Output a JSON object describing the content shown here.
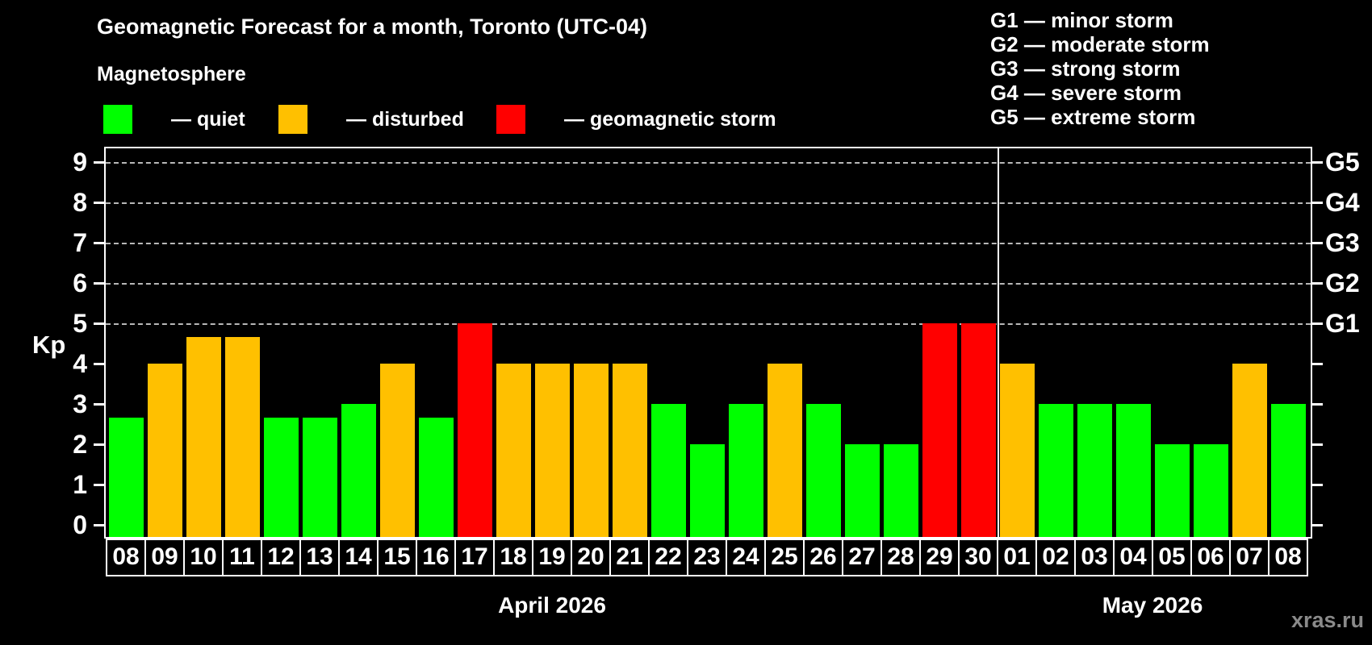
{
  "title": "Geomagnetic Forecast for a month, Toronto (UTC-04)",
  "subtitle": "Magnetosphere",
  "legend": {
    "items": [
      {
        "name": "quiet",
        "label": "— quiet",
        "color": "#00ff00"
      },
      {
        "name": "disturbed",
        "label": "— disturbed",
        "color": "#ffc000"
      },
      {
        "name": "storm",
        "label": "— geomagnetic storm",
        "color": "#ff0000"
      }
    ]
  },
  "g_legend": [
    "G1 — minor storm",
    "G2 — moderate storm",
    "G3 — strong storm",
    "G4 — severe storm",
    "G5 — extreme storm"
  ],
  "axes": {
    "kp_label": "Kp",
    "y_ticks": [
      0,
      1,
      2,
      3,
      4,
      5,
      6,
      7,
      8,
      9
    ],
    "gridline_kp": [
      5,
      6,
      7,
      8,
      9
    ],
    "g_axis_labels": [
      "G1",
      "G2",
      "G3",
      "G4",
      "G5"
    ],
    "g_axis_start_kp": 5
  },
  "months": [
    {
      "key": "april",
      "label": "April 2026"
    },
    {
      "key": "may",
      "label": "May 2026"
    }
  ],
  "watermark": "xras.ru",
  "chart_data": {
    "type": "bar",
    "title": "Geomagnetic Forecast for a month, Toronto (UTC-04)",
    "xlabel": "",
    "ylabel": "Kp",
    "ylim": [
      0,
      9
    ],
    "grid": "dashed horizontal at Kp 5-9 (G1-G5)",
    "legend_position": "top-left",
    "status_colors": {
      "quiet": "#00ff00",
      "disturbed": "#ffc000",
      "storm": "#ff0000"
    },
    "bars": [
      {
        "month": "april",
        "day": "08",
        "kp": 2.67,
        "status": "quiet"
      },
      {
        "month": "april",
        "day": "09",
        "kp": 4,
        "status": "disturbed"
      },
      {
        "month": "april",
        "day": "10",
        "kp": 4.67,
        "status": "disturbed"
      },
      {
        "month": "april",
        "day": "11",
        "kp": 4.67,
        "status": "disturbed"
      },
      {
        "month": "april",
        "day": "12",
        "kp": 2.67,
        "status": "quiet"
      },
      {
        "month": "april",
        "day": "13",
        "kp": 2.67,
        "status": "quiet"
      },
      {
        "month": "april",
        "day": "14",
        "kp": 3,
        "status": "quiet"
      },
      {
        "month": "april",
        "day": "15",
        "kp": 4,
        "status": "disturbed"
      },
      {
        "month": "april",
        "day": "16",
        "kp": 2.67,
        "status": "quiet"
      },
      {
        "month": "april",
        "day": "17",
        "kp": 5,
        "status": "storm"
      },
      {
        "month": "april",
        "day": "18",
        "kp": 4,
        "status": "disturbed"
      },
      {
        "month": "april",
        "day": "19",
        "kp": 4,
        "status": "disturbed"
      },
      {
        "month": "april",
        "day": "20",
        "kp": 4,
        "status": "disturbed"
      },
      {
        "month": "april",
        "day": "21",
        "kp": 4,
        "status": "disturbed"
      },
      {
        "month": "april",
        "day": "22",
        "kp": 3,
        "status": "quiet"
      },
      {
        "month": "april",
        "day": "23",
        "kp": 2,
        "status": "quiet"
      },
      {
        "month": "april",
        "day": "24",
        "kp": 3,
        "status": "quiet"
      },
      {
        "month": "april",
        "day": "25",
        "kp": 4,
        "status": "disturbed"
      },
      {
        "month": "april",
        "day": "26",
        "kp": 3,
        "status": "quiet"
      },
      {
        "month": "april",
        "day": "27",
        "kp": 2,
        "status": "quiet"
      },
      {
        "month": "april",
        "day": "28",
        "kp": 2,
        "status": "quiet"
      },
      {
        "month": "april",
        "day": "29",
        "kp": 5,
        "status": "storm"
      },
      {
        "month": "april",
        "day": "30",
        "kp": 5,
        "status": "storm"
      },
      {
        "month": "may",
        "day": "01",
        "kp": 4,
        "status": "disturbed"
      },
      {
        "month": "may",
        "day": "02",
        "kp": 3,
        "status": "quiet"
      },
      {
        "month": "may",
        "day": "03",
        "kp": 3,
        "status": "quiet"
      },
      {
        "month": "may",
        "day": "04",
        "kp": 3,
        "status": "quiet"
      },
      {
        "month": "may",
        "day": "05",
        "kp": 2,
        "status": "quiet"
      },
      {
        "month": "may",
        "day": "06",
        "kp": 2,
        "status": "quiet"
      },
      {
        "month": "may",
        "day": "07",
        "kp": 4,
        "status": "disturbed"
      },
      {
        "month": "may",
        "day": "08",
        "kp": 3,
        "status": "quiet"
      }
    ]
  }
}
